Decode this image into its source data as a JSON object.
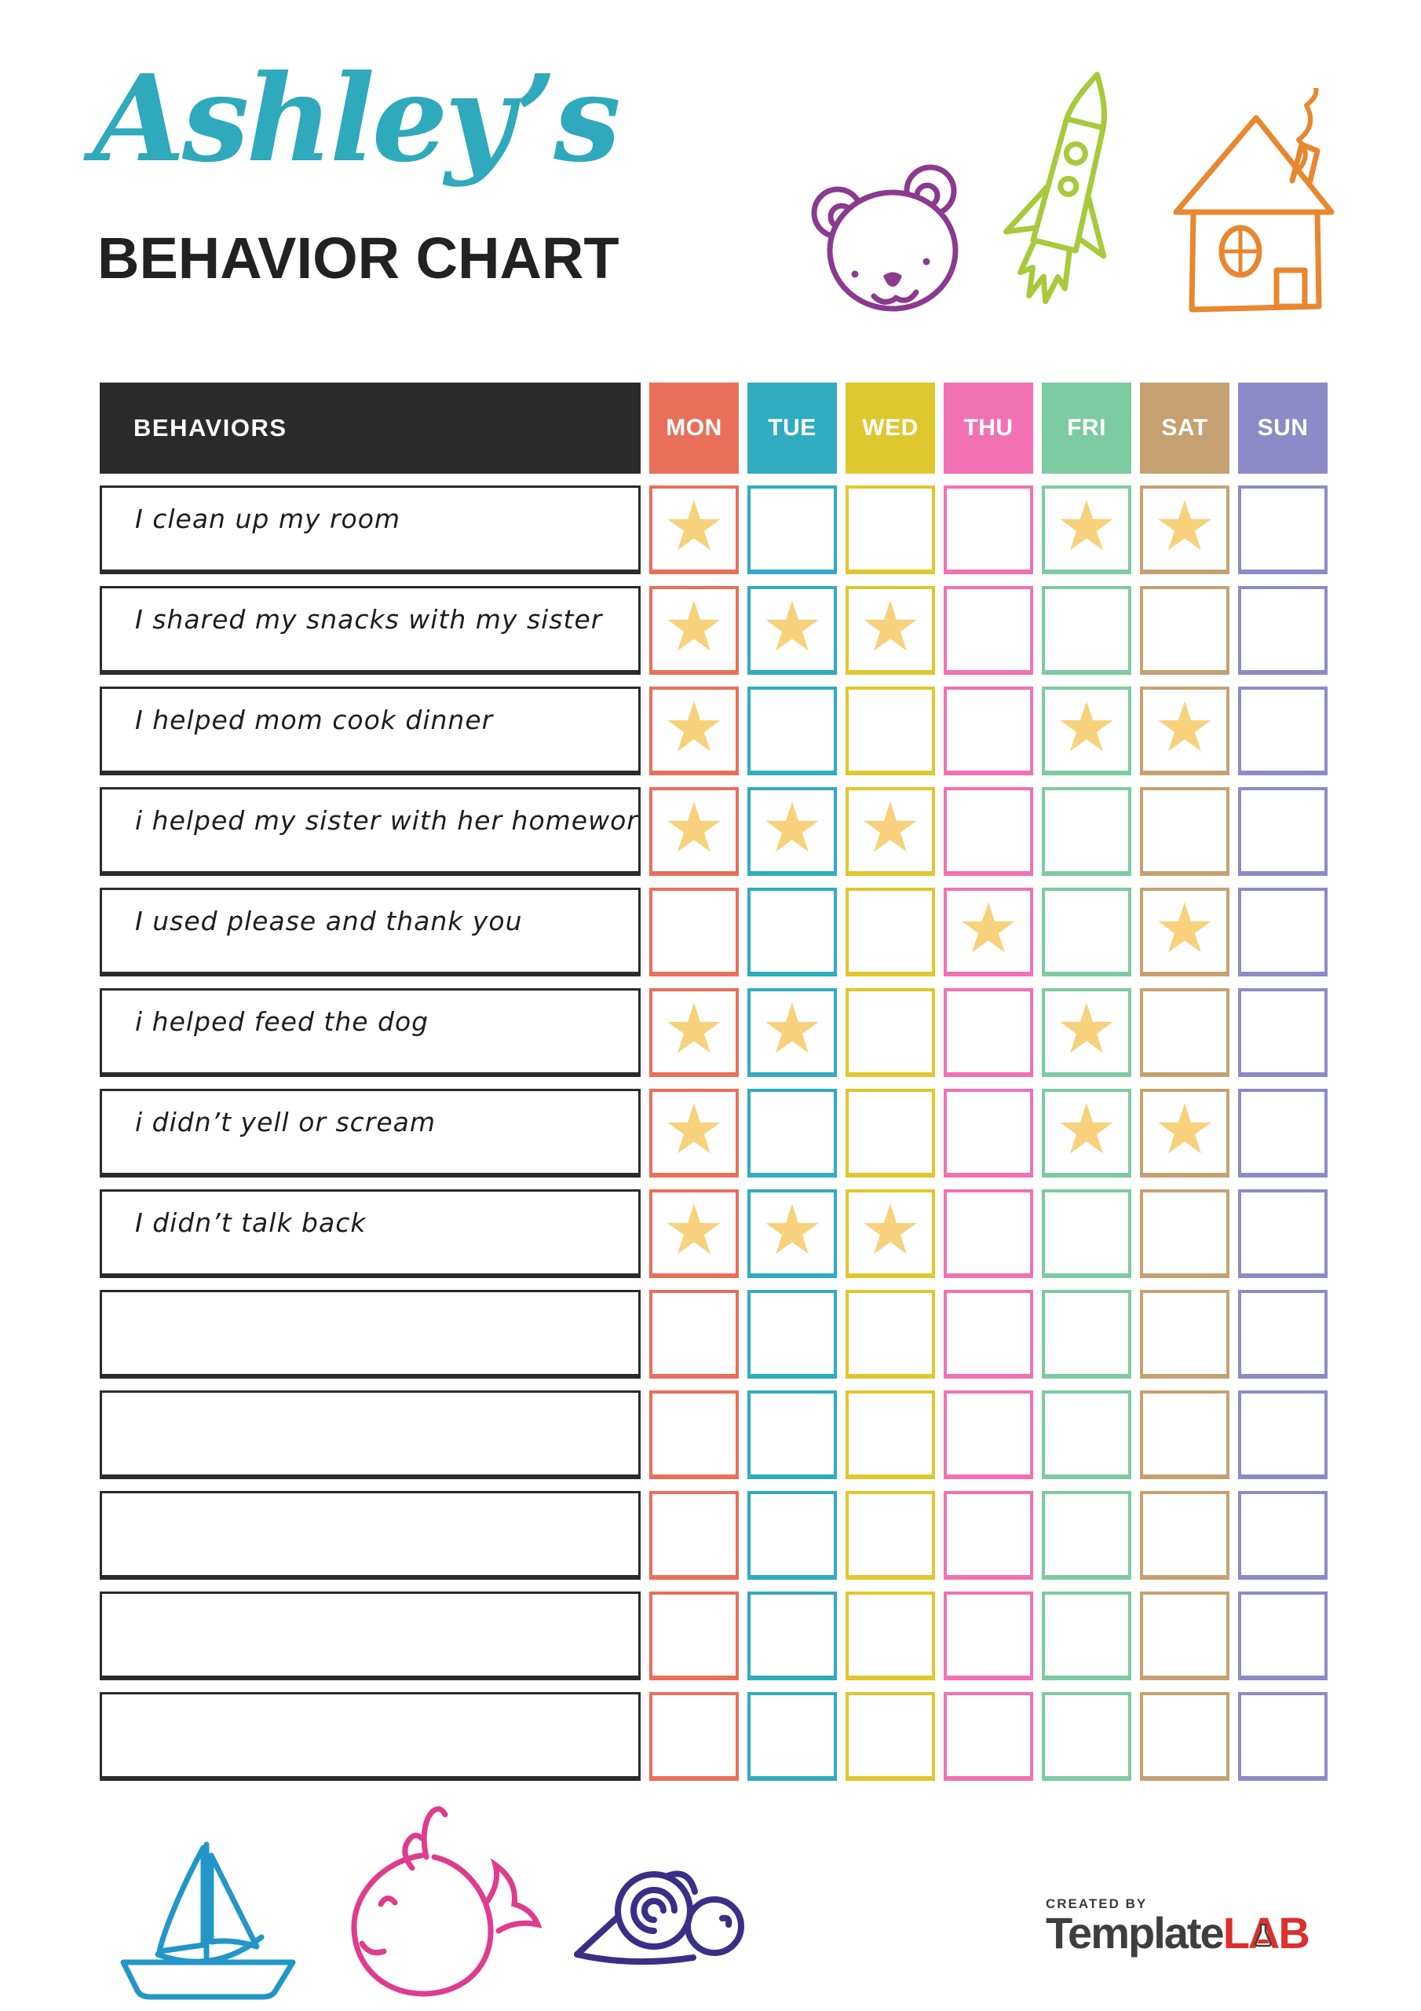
{
  "header": {
    "title_script": "Ashley’s",
    "title_main": "BEHAVIOR CHART",
    "title_script_color": "#2FA9BC",
    "doodles": [
      "bear-icon",
      "rocket-icon",
      "house-icon"
    ]
  },
  "table": {
    "behaviors_label": "BEHAVIORS",
    "header_bg": "#2B2B2B",
    "star_glyph": "★",
    "star_color": "#F8D17C",
    "days": [
      {
        "label": "MON",
        "color": "#E8705A"
      },
      {
        "label": "TUE",
        "color": "#31ABBF"
      },
      {
        "label": "WED",
        "color": "#DFC72F"
      },
      {
        "label": "THU",
        "color": "#F171B2"
      },
      {
        "label": "FRI",
        "color": "#7DCBA0"
      },
      {
        "label": "SAT",
        "color": "#C5A172"
      },
      {
        "label": "SUN",
        "color": "#8C8BC8"
      }
    ],
    "rows": [
      {
        "behavior": "I clean up my room",
        "stars": [
          1,
          0,
          0,
          0,
          1,
          1,
          0
        ]
      },
      {
        "behavior": "I shared my snacks with my sister",
        "stars": [
          1,
          1,
          1,
          0,
          0,
          0,
          0
        ]
      },
      {
        "behavior": "I helped mom cook dinner",
        "stars": [
          1,
          0,
          0,
          0,
          1,
          1,
          0
        ]
      },
      {
        "behavior": "i helped my sister with her homework",
        "stars": [
          1,
          1,
          1,
          0,
          0,
          0,
          0
        ]
      },
      {
        "behavior": "I used please and thank you",
        "stars": [
          0,
          0,
          0,
          1,
          0,
          1,
          0
        ]
      },
      {
        "behavior": "i helped feed the dog",
        "stars": [
          1,
          1,
          0,
          0,
          1,
          0,
          0
        ]
      },
      {
        "behavior": "i didn’t yell or scream",
        "stars": [
          1,
          0,
          0,
          0,
          1,
          1,
          0
        ]
      },
      {
        "behavior": "I didn’t talk back",
        "stars": [
          1,
          1,
          1,
          0,
          0,
          0,
          0
        ]
      },
      {
        "behavior": "",
        "stars": [
          0,
          0,
          0,
          0,
          0,
          0,
          0
        ]
      },
      {
        "behavior": "",
        "stars": [
          0,
          0,
          0,
          0,
          0,
          0,
          0
        ]
      },
      {
        "behavior": "",
        "stars": [
          0,
          0,
          0,
          0,
          0,
          0,
          0
        ]
      },
      {
        "behavior": "",
        "stars": [
          0,
          0,
          0,
          0,
          0,
          0,
          0
        ]
      },
      {
        "behavior": "",
        "stars": [
          0,
          0,
          0,
          0,
          0,
          0,
          0
        ]
      }
    ]
  },
  "footer": {
    "doodles": [
      "sailboat-icon",
      "whale-icon",
      "snail-icon"
    ],
    "logo": {
      "created_by": "CREATED BY",
      "brand_primary": "Template",
      "brand_accent": "LAB",
      "accent_color": "#DC2F2F"
    }
  }
}
